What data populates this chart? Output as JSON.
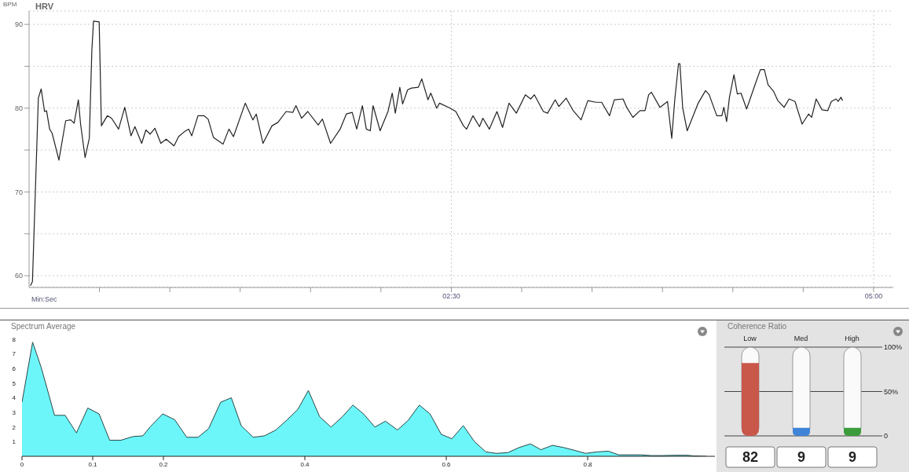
{
  "chart_data": [
    {
      "type": "line",
      "title": "HRV",
      "ylabel": "BPM",
      "xlabel": "Min:Sec",
      "xlim": [
        0,
        307
      ],
      "ylim": [
        58.6,
        91.6
      ],
      "xticks": [
        {
          "value": 25,
          "label": null
        },
        {
          "value": 50,
          "label": null
        },
        {
          "value": 75,
          "label": null
        },
        {
          "value": 100,
          "label": null
        },
        {
          "value": 125,
          "label": null
        },
        {
          "value": 150,
          "label": "02:30"
        },
        {
          "value": 175,
          "label": null
        },
        {
          "value": 200,
          "label": null
        },
        {
          "value": 225,
          "label": null
        },
        {
          "value": 250,
          "label": null
        },
        {
          "value": 275,
          "label": null
        },
        {
          "value": 300,
          "label": "05:00"
        }
      ],
      "yticks": [
        60,
        {
          "value": 65,
          "label": null
        },
        70,
        {
          "value": 75,
          "label": null
        },
        80,
        {
          "value": 85,
          "label": null
        },
        90
      ],
      "grid": true,
      "series": [
        {
          "color": "#222222",
          "x": [
            0.5,
            1.2,
            3.0,
            3.3,
            4.3,
            5.5,
            6.2,
            7.3,
            8.2,
            10.6,
            13.0,
            14.8,
            16.0,
            17.5,
            18.3,
            19.9,
            21.4,
            22.3,
            22.9,
            24.9,
            25.7,
            27.8,
            29.3,
            31.8,
            34.0,
            36.2,
            37.6,
            40.0,
            41.5,
            43.0,
            44.7,
            46.8,
            48.7,
            51.5,
            53.1,
            55.2,
            56.7,
            57.8,
            60.0,
            62.1,
            63.6,
            65.5,
            68.9,
            71.0,
            72.6,
            76.8,
            79.5,
            80.7,
            83.1,
            86.3,
            88.4,
            91.3,
            93.7,
            94.8,
            96.8,
            99.0,
            102.7,
            104.2,
            107.1,
            110.5,
            112.7,
            114.8,
            116.4,
            118.4,
            119.8,
            121.2,
            122.2,
            124.7,
            127.5,
            129.0,
            130.1,
            131.7,
            132.7,
            134.5,
            135.9,
            138.3,
            139.5,
            141.7,
            142.7,
            144.8,
            145.8,
            149.6,
            151.6,
            154.3,
            155.4,
            157.7,
            160.0,
            161.2,
            163.5,
            166.2,
            168.2,
            170.5,
            173.1,
            176.3,
            178.2,
            179.5,
            182.7,
            184.2,
            186.9,
            188.2,
            190.8,
            193.3,
            196.1,
            198.5,
            201.4,
            203.4,
            206.2,
            207.9,
            211.0,
            212.3,
            214.5,
            217.0,
            218.8,
            220.1,
            221.1,
            224.1,
            226.8,
            228.3,
            229.4,
            230.7,
            231.2,
            232.2,
            233.8,
            237.7,
            240.3,
            241.6,
            244.3,
            246.1,
            246.8,
            247.8,
            248.8,
            250.4,
            251.6,
            252.9,
            254.9,
            258.0,
            259.8,
            261.2,
            262.5,
            264.5,
            266.0,
            268.2,
            270.0,
            272.1,
            274.6,
            276.9,
            278.0,
            279.6,
            281.7,
            283.7,
            285.0,
            286.7,
            287.4,
            288.4,
            289.0
          ],
          "values": [
            58.8,
            59.3,
            78.1,
            81.2,
            82.3,
            79.6,
            79.7,
            77.5,
            77.0,
            73.8,
            78.5,
            78.6,
            78.2,
            81.0,
            78.1,
            74.1,
            76.4,
            86.9,
            90.4,
            90.3,
            77.9,
            79.1,
            78.8,
            77.5,
            80.1,
            76.7,
            77.8,
            75.8,
            77.4,
            76.9,
            77.6,
            75.8,
            76.3,
            75.5,
            76.6,
            77.2,
            77.5,
            76.7,
            79.1,
            79.1,
            78.7,
            76.5,
            75.7,
            77.5,
            76.6,
            80.6,
            78.6,
            79.3,
            75.8,
            77.9,
            78.3,
            79.6,
            79.5,
            80.3,
            78.8,
            79.6,
            78.0,
            78.7,
            75.8,
            77.5,
            79.3,
            79.5,
            77.5,
            80.3,
            77.5,
            77.3,
            80.3,
            77.3,
            79.6,
            81.8,
            79.4,
            82.5,
            80.5,
            82.2,
            82.4,
            82.5,
            83.5,
            81.0,
            81.8,
            80.0,
            80.6,
            80.0,
            79.6,
            77.9,
            77.5,
            79.1,
            77.8,
            78.8,
            77.5,
            79.6,
            77.7,
            80.6,
            79.4,
            81.6,
            81.1,
            81.6,
            79.6,
            79.4,
            81.0,
            80.2,
            81.2,
            79.7,
            78.6,
            80.9,
            80.7,
            80.7,
            79.1,
            81.0,
            81.1,
            80.1,
            78.9,
            79.7,
            79.7,
            81.6,
            81.9,
            80.1,
            80.8,
            76.4,
            81.1,
            85.3,
            85.3,
            80.0,
            77.3,
            80.6,
            82.1,
            81.6,
            79.1,
            79.1,
            80.1,
            78.4,
            81.3,
            84.0,
            81.7,
            81.8,
            79.9,
            82.9,
            84.6,
            84.6,
            82.8,
            82.0,
            80.9,
            80.1,
            81.1,
            80.8,
            78.1,
            79.3,
            78.9,
            81.1,
            79.8,
            79.7,
            80.8,
            81.1,
            80.8,
            81.3,
            80.9
          ]
        }
      ]
    },
    {
      "type": "area",
      "title": "Spectrum Average",
      "xlim": [
        0,
        0.98
      ],
      "ylim": [
        0,
        8
      ],
      "xticks": [
        0,
        0.1,
        0.2,
        0.4,
        0.6,
        0.8
      ],
      "yticks": [
        1,
        2,
        3,
        4,
        5,
        6,
        7,
        8
      ],
      "grid": false,
      "series": [
        {
          "color": "#6cf6f9",
          "x": [
            0,
            0.015,
            0.027,
            0.038,
            0.046,
            0.061,
            0.077,
            0.093,
            0.109,
            0.124,
            0.14,
            0.157,
            0.171,
            0.181,
            0.199,
            0.216,
            0.233,
            0.249,
            0.264,
            0.281,
            0.296,
            0.31,
            0.327,
            0.343,
            0.359,
            0.375,
            0.39,
            0.405,
            0.421,
            0.437,
            0.453,
            0.468,
            0.478,
            0.483,
            0.499,
            0.514,
            0.531,
            0.546,
            0.562,
            0.577,
            0.593,
            0.608,
            0.624,
            0.64,
            0.656,
            0.671,
            0.687,
            0.703,
            0.719,
            0.734,
            0.75,
            0.766,
            0.782,
            0.797,
            0.813,
            0.829,
            0.844,
            0.86,
            0.875,
            0.89,
            0.905,
            0.923,
            0.942,
            0.949,
            0.968
          ],
          "values": [
            3.7,
            7.8,
            6.1,
            4.2,
            2.8,
            2.8,
            1.6,
            3.3,
            2.9,
            1.1,
            1.1,
            1.35,
            1.4,
            2.0,
            2.9,
            2.5,
            1.3,
            1.3,
            1.9,
            3.7,
            4.0,
            2.1,
            1.3,
            1.4,
            1.8,
            2.5,
            3.2,
            4.5,
            2.7,
            2.0,
            2.7,
            3.5,
            3.1,
            2.9,
            2.0,
            2.4,
            1.8,
            2.45,
            3.5,
            2.9,
            1.5,
            1.2,
            2.1,
            1.0,
            0.3,
            0.2,
            0.25,
            0.6,
            0.85,
            0.45,
            0.75,
            0.6,
            0.4,
            0.2,
            0.3,
            0.35,
            0.1,
            0.1,
            0.1,
            0.05,
            0.05,
            0.07,
            0.07,
            0.03,
            0
          ]
        }
      ]
    },
    {
      "type": "bar",
      "title": "Coherence Ratio",
      "categories": [
        "Low",
        "Med",
        "High"
      ],
      "values": [
        82,
        9,
        9
      ],
      "colors": [
        "#c9574a",
        "#3f84d6",
        "#3c9c3c"
      ],
      "ylim": [
        0,
        100
      ],
      "yticks": [
        0,
        {
          "value": 50,
          "label": "50%"
        },
        {
          "value": 100,
          "label": "100%"
        }
      ],
      "grid": "y",
      "data_labels": true
    }
  ]
}
